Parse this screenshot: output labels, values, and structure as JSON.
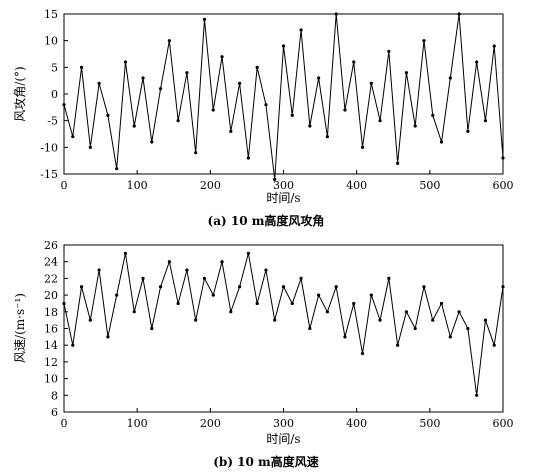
{
  "chart_data": [
    {
      "type": "line",
      "caption": "(a) 10 m高度风攻角",
      "xlabel": "时间/s",
      "ylabel": "风攻角/(°)",
      "xlim": [
        0,
        600
      ],
      "ylim": [
        -15,
        15
      ],
      "xticks": [
        0,
        100,
        200,
        300,
        400,
        500,
        600
      ],
      "yticks": [
        15,
        10,
        5,
        0,
        -5,
        -10,
        -15
      ],
      "x": [
        0,
        12,
        24,
        36,
        48,
        60,
        72,
        84,
        96,
        108,
        120,
        132,
        144,
        156,
        168,
        180,
        192,
        204,
        216,
        228,
        240,
        252,
        264,
        276,
        288,
        300,
        312,
        324,
        336,
        348,
        360,
        372,
        384,
        396,
        408,
        420,
        432,
        444,
        456,
        468,
        480,
        492,
        504,
        516,
        528,
        540,
        552,
        564,
        576,
        588,
        600
      ],
      "y": [
        -2,
        -8,
        5,
        -10,
        2,
        -4,
        -14,
        6,
        -6,
        3,
        -9,
        1,
        10,
        -5,
        4,
        -11,
        14,
        -3,
        7,
        -7,
        2,
        -12,
        5,
        -2,
        -16,
        9,
        -4,
        12,
        -6,
        3,
        -8,
        15,
        -3,
        6,
        -10,
        2,
        -5,
        8,
        -13,
        4,
        -6,
        10,
        -4,
        -9,
        3,
        15,
        -7,
        6,
        -5,
        9,
        -12
      ],
      "marker": "dot",
      "grid": false
    },
    {
      "type": "line",
      "caption": "(b) 10 m高度风速",
      "xlabel": "时间/s",
      "ylabel": "风速/(m·s⁻¹)",
      "xlim": [
        0,
        600
      ],
      "ylim": [
        6,
        26
      ],
      "xticks": [
        0,
        100,
        200,
        300,
        400,
        500,
        600
      ],
      "yticks": [
        26,
        24,
        22,
        20,
        18,
        16,
        14,
        12,
        10,
        8,
        6
      ],
      "x": [
        0,
        12,
        24,
        36,
        48,
        60,
        72,
        84,
        96,
        108,
        120,
        132,
        144,
        156,
        168,
        180,
        192,
        204,
        216,
        228,
        240,
        252,
        264,
        276,
        288,
        300,
        312,
        324,
        336,
        348,
        360,
        372,
        384,
        396,
        408,
        420,
        432,
        444,
        456,
        468,
        480,
        492,
        504,
        516,
        528,
        540,
        552,
        564,
        576,
        588,
        600
      ],
      "y": [
        19,
        14,
        21,
        17,
        23,
        15,
        20,
        25,
        18,
        22,
        16,
        21,
        24,
        19,
        23,
        17,
        22,
        20,
        24,
        18,
        21,
        25,
        19,
        23,
        17,
        21,
        19,
        22,
        16,
        20,
        18,
        21,
        15,
        19,
        13,
        20,
        17,
        22,
        14,
        18,
        16,
        21,
        17,
        19,
        15,
        18,
        16,
        8,
        17,
        14,
        21
      ],
      "marker": "dot",
      "grid": false
    }
  ]
}
